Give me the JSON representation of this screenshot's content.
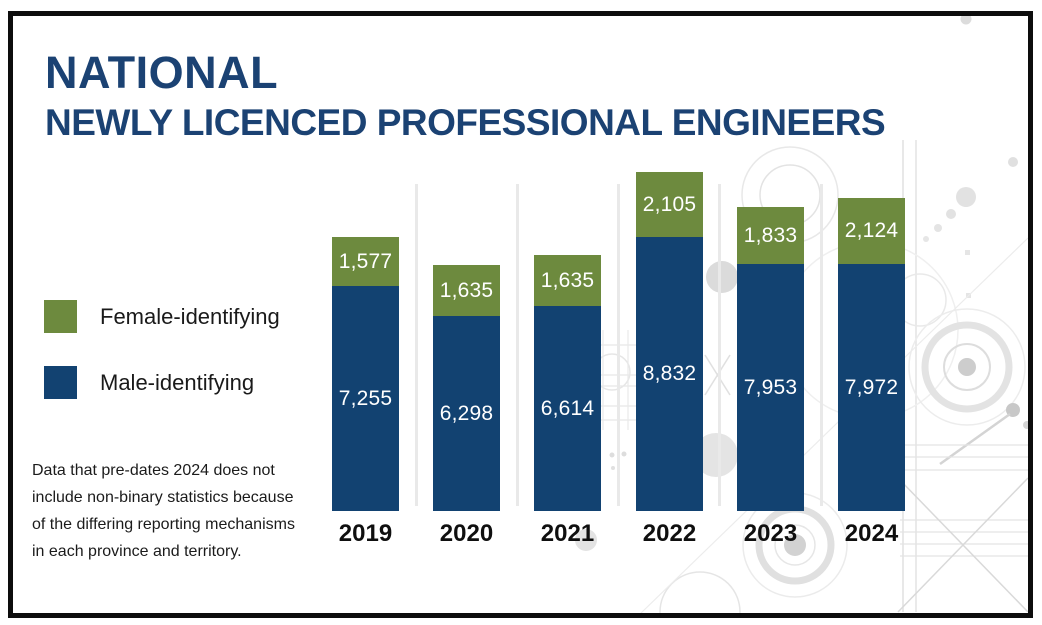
{
  "title": {
    "line1": "NATIONAL",
    "line2": "NEWLY LICENCED PROFESSIONAL ENGINEERS"
  },
  "legend": {
    "items": [
      {
        "label": "Female-identifying",
        "color": "#6d8a3e"
      },
      {
        "label": "Male-identifying",
        "color": "#124271"
      }
    ]
  },
  "footnote": {
    "lines": [
      "Data that pre-dates 2024 does not",
      "include non-binary statistics because",
      "of the differing reporting mechanisms",
      "in each province and territory."
    ]
  },
  "chart_data": {
    "type": "bar",
    "stacked": true,
    "title": "NATIONAL NEWLY LICENCED PROFESSIONAL ENGINEERS",
    "categories": [
      "2019",
      "2020",
      "2021",
      "2022",
      "2023",
      "2024"
    ],
    "series": [
      {
        "name": "Female-identifying",
        "color": "#6d8a3e",
        "values": [
          1577,
          1635,
          1635,
          2105,
          1833,
          2124
        ]
      },
      {
        "name": "Male-identifying",
        "color": "#124271",
        "values": [
          7255,
          6298,
          6614,
          8832,
          7953,
          7972
        ]
      }
    ],
    "value_labels": true,
    "axis": "none",
    "legend_position": "left",
    "xlabel": "",
    "ylabel": ""
  }
}
